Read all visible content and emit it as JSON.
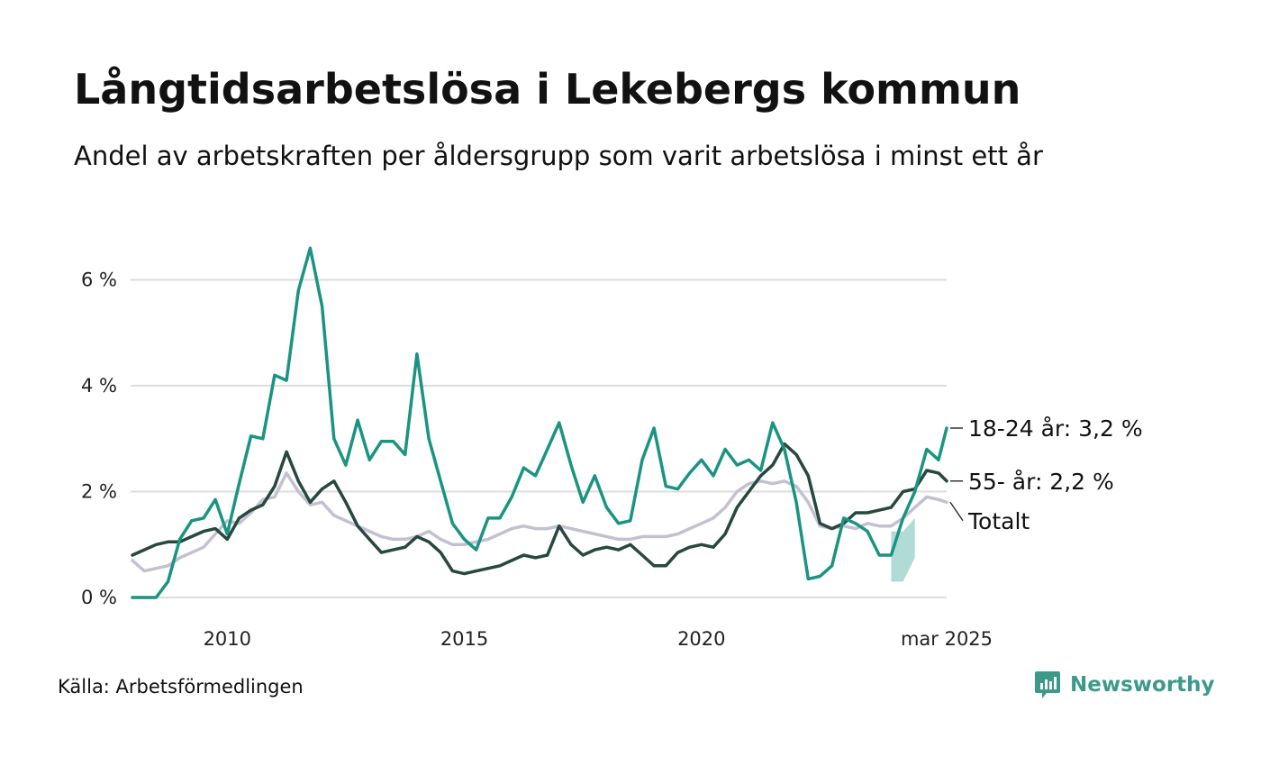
{
  "title": "Långtidsarbetslösa i Lekebergs kommun",
  "subtitle": "Andel av arbetskraften per åldersgrupp som varit arbetslösa i minst ett år",
  "source": "Källa: Arbetsförmedlingen",
  "brand": {
    "name": "Newsworthy",
    "icon": "newsworthy-logo-icon",
    "color": "#3d9a8b"
  },
  "chart_data": {
    "type": "line",
    "xlim": [
      2008.0,
      2025.17
    ],
    "ylim": [
      0,
      7.2
    ],
    "y_ticks": [
      {
        "value": 0,
        "label": "0 %"
      },
      {
        "value": 2,
        "label": "2 %"
      },
      {
        "value": 4,
        "label": "4 %"
      },
      {
        "value": 6,
        "label": "6 %"
      }
    ],
    "x_ticks": [
      {
        "value": 2010,
        "label": "2010"
      },
      {
        "value": 2015,
        "label": "2015"
      },
      {
        "value": 2020,
        "label": "2020"
      },
      {
        "value": 2025.17,
        "label": "mar 2025"
      }
    ],
    "grid": true,
    "legend": "end-labels",
    "series": [
      {
        "name": "Totalt",
        "end_label": "Totalt",
        "color": "#c3c1cf",
        "values": [
          [
            2008.0,
            0.7
          ],
          [
            2008.25,
            0.5
          ],
          [
            2008.5,
            0.55
          ],
          [
            2008.75,
            0.6
          ],
          [
            2009.0,
            0.75
          ],
          [
            2009.25,
            0.85
          ],
          [
            2009.5,
            0.95
          ],
          [
            2009.75,
            1.2
          ],
          [
            2010.0,
            1.45
          ],
          [
            2010.25,
            1.4
          ],
          [
            2010.5,
            1.6
          ],
          [
            2010.75,
            1.85
          ],
          [
            2011.0,
            1.9
          ],
          [
            2011.25,
            2.35
          ],
          [
            2011.5,
            2.0
          ],
          [
            2011.75,
            1.75
          ],
          [
            2012.0,
            1.8
          ],
          [
            2012.25,
            1.55
          ],
          [
            2012.5,
            1.45
          ],
          [
            2012.75,
            1.35
          ],
          [
            2013.0,
            1.25
          ],
          [
            2013.25,
            1.15
          ],
          [
            2013.5,
            1.1
          ],
          [
            2013.75,
            1.1
          ],
          [
            2014.0,
            1.15
          ],
          [
            2014.25,
            1.25
          ],
          [
            2014.5,
            1.1
          ],
          [
            2014.75,
            1.0
          ],
          [
            2015.0,
            1.0
          ],
          [
            2015.25,
            1.05
          ],
          [
            2015.5,
            1.1
          ],
          [
            2015.75,
            1.2
          ],
          [
            2016.0,
            1.3
          ],
          [
            2016.25,
            1.35
          ],
          [
            2016.5,
            1.3
          ],
          [
            2016.75,
            1.3
          ],
          [
            2017.0,
            1.35
          ],
          [
            2017.25,
            1.3
          ],
          [
            2017.5,
            1.25
          ],
          [
            2017.75,
            1.2
          ],
          [
            2018.0,
            1.15
          ],
          [
            2018.25,
            1.1
          ],
          [
            2018.5,
            1.1
          ],
          [
            2018.75,
            1.15
          ],
          [
            2019.0,
            1.15
          ],
          [
            2019.25,
            1.15
          ],
          [
            2019.5,
            1.2
          ],
          [
            2019.75,
            1.3
          ],
          [
            2020.0,
            1.4
          ],
          [
            2020.25,
            1.5
          ],
          [
            2020.5,
            1.7
          ],
          [
            2020.75,
            2.0
          ],
          [
            2021.0,
            2.15
          ],
          [
            2021.25,
            2.2
          ],
          [
            2021.5,
            2.15
          ],
          [
            2021.75,
            2.2
          ],
          [
            2022.0,
            2.1
          ],
          [
            2022.25,
            1.8
          ],
          [
            2022.5,
            1.35
          ],
          [
            2022.75,
            1.3
          ],
          [
            2023.0,
            1.35
          ],
          [
            2023.25,
            1.3
          ],
          [
            2023.5,
            1.4
          ],
          [
            2023.75,
            1.35
          ],
          [
            2024.0,
            1.35
          ],
          [
            2024.25,
            1.5
          ],
          [
            2024.5,
            1.7
          ],
          [
            2024.75,
            1.9
          ],
          [
            2025.0,
            1.85
          ],
          [
            2025.17,
            1.8
          ]
        ]
      },
      {
        "name": "55- år",
        "end_label": "55- år: 2,2 %",
        "color": "#26483f",
        "values": [
          [
            2008.0,
            0.8
          ],
          [
            2008.25,
            0.9
          ],
          [
            2008.5,
            1.0
          ],
          [
            2008.75,
            1.05
          ],
          [
            2009.0,
            1.05
          ],
          [
            2009.25,
            1.15
          ],
          [
            2009.5,
            1.25
          ],
          [
            2009.75,
            1.3
          ],
          [
            2010.0,
            1.1
          ],
          [
            2010.25,
            1.5
          ],
          [
            2010.5,
            1.65
          ],
          [
            2010.75,
            1.75
          ],
          [
            2011.0,
            2.1
          ],
          [
            2011.25,
            2.75
          ],
          [
            2011.5,
            2.2
          ],
          [
            2011.75,
            1.8
          ],
          [
            2012.0,
            2.05
          ],
          [
            2012.25,
            2.2
          ],
          [
            2012.5,
            1.8
          ],
          [
            2012.75,
            1.35
          ],
          [
            2013.0,
            1.1
          ],
          [
            2013.25,
            0.85
          ],
          [
            2013.5,
            0.9
          ],
          [
            2013.75,
            0.95
          ],
          [
            2014.0,
            1.15
          ],
          [
            2014.25,
            1.05
          ],
          [
            2014.5,
            0.85
          ],
          [
            2014.75,
            0.5
          ],
          [
            2015.0,
            0.45
          ],
          [
            2015.25,
            0.5
          ],
          [
            2015.5,
            0.55
          ],
          [
            2015.75,
            0.6
          ],
          [
            2016.0,
            0.7
          ],
          [
            2016.25,
            0.8
          ],
          [
            2016.5,
            0.75
          ],
          [
            2016.75,
            0.8
          ],
          [
            2017.0,
            1.35
          ],
          [
            2017.25,
            1.0
          ],
          [
            2017.5,
            0.8
          ],
          [
            2017.75,
            0.9
          ],
          [
            2018.0,
            0.95
          ],
          [
            2018.25,
            0.9
          ],
          [
            2018.5,
            1.0
          ],
          [
            2018.75,
            0.8
          ],
          [
            2019.0,
            0.6
          ],
          [
            2019.25,
            0.6
          ],
          [
            2019.5,
            0.85
          ],
          [
            2019.75,
            0.95
          ],
          [
            2020.0,
            1.0
          ],
          [
            2020.25,
            0.95
          ],
          [
            2020.5,
            1.2
          ],
          [
            2020.75,
            1.7
          ],
          [
            2021.0,
            2.0
          ],
          [
            2021.25,
            2.3
          ],
          [
            2021.5,
            2.5
          ],
          [
            2021.75,
            2.9
          ],
          [
            2022.0,
            2.7
          ],
          [
            2022.25,
            2.3
          ],
          [
            2022.5,
            1.4
          ],
          [
            2022.75,
            1.3
          ],
          [
            2023.0,
            1.4
          ],
          [
            2023.25,
            1.6
          ],
          [
            2023.5,
            1.6
          ],
          [
            2023.75,
            1.65
          ],
          [
            2024.0,
            1.7
          ],
          [
            2024.25,
            2.0
          ],
          [
            2024.5,
            2.05
          ],
          [
            2024.75,
            2.4
          ],
          [
            2025.0,
            2.35
          ],
          [
            2025.17,
            2.2
          ]
        ]
      },
      {
        "name": "18-24 år",
        "end_label": "18-24 år: 3,2 %",
        "color": "#1a9482",
        "values": [
          [
            2008.0,
            0.0
          ],
          [
            2008.25,
            0.0
          ],
          [
            2008.5,
            0.0
          ],
          [
            2008.75,
            0.3
          ],
          [
            2009.0,
            1.1
          ],
          [
            2009.25,
            1.45
          ],
          [
            2009.5,
            1.5
          ],
          [
            2009.75,
            1.85
          ],
          [
            2010.0,
            1.2
          ],
          [
            2010.25,
            2.15
          ],
          [
            2010.5,
            3.05
          ],
          [
            2010.75,
            3.0
          ],
          [
            2011.0,
            4.2
          ],
          [
            2011.25,
            4.1
          ],
          [
            2011.5,
            5.8
          ],
          [
            2011.75,
            6.6
          ],
          [
            2012.0,
            5.5
          ],
          [
            2012.25,
            3.0
          ],
          [
            2012.5,
            2.5
          ],
          [
            2012.75,
            3.35
          ],
          [
            2013.0,
            2.6
          ],
          [
            2013.25,
            2.95
          ],
          [
            2013.5,
            2.95
          ],
          [
            2013.75,
            2.7
          ],
          [
            2014.0,
            4.6
          ],
          [
            2014.25,
            3.0
          ],
          [
            2014.5,
            2.2
          ],
          [
            2014.75,
            1.4
          ],
          [
            2015.0,
            1.1
          ],
          [
            2015.25,
            0.9
          ],
          [
            2015.5,
            1.5
          ],
          [
            2015.75,
            1.5
          ],
          [
            2016.0,
            1.9
          ],
          [
            2016.25,
            2.45
          ],
          [
            2016.5,
            2.3
          ],
          [
            2016.75,
            2.8
          ],
          [
            2017.0,
            3.3
          ],
          [
            2017.25,
            2.5
          ],
          [
            2017.5,
            1.8
          ],
          [
            2017.75,
            2.3
          ],
          [
            2018.0,
            1.7
          ],
          [
            2018.25,
            1.4
          ],
          [
            2018.5,
            1.45
          ],
          [
            2018.75,
            2.6
          ],
          [
            2019.0,
            3.2
          ],
          [
            2019.25,
            2.1
          ],
          [
            2019.5,
            2.05
          ],
          [
            2019.75,
            2.35
          ],
          [
            2020.0,
            2.6
          ],
          [
            2020.25,
            2.3
          ],
          [
            2020.5,
            2.8
          ],
          [
            2020.75,
            2.5
          ],
          [
            2021.0,
            2.6
          ],
          [
            2021.25,
            2.4
          ],
          [
            2021.5,
            3.3
          ],
          [
            2021.75,
            2.8
          ],
          [
            2022.0,
            1.8
          ],
          [
            2022.25,
            0.35
          ],
          [
            2022.5,
            0.4
          ],
          [
            2022.75,
            0.6
          ],
          [
            2023.0,
            1.5
          ],
          [
            2023.25,
            1.4
          ],
          [
            2023.5,
            1.25
          ],
          [
            2023.75,
            0.8
          ],
          [
            2024.0,
            0.8
          ],
          [
            2024.25,
            1.5
          ],
          [
            2024.5,
            2.0
          ],
          [
            2024.75,
            2.8
          ],
          [
            2025.0,
            2.6
          ],
          [
            2025.17,
            3.2
          ]
        ]
      }
    ],
    "uncertainty_band": {
      "series": "18-24 år",
      "color": "#a8d8d0",
      "values": [
        [
          2024.0,
          0.3,
          1.25
        ],
        [
          2024.25,
          0.3,
          1.25
        ],
        [
          2024.5,
          0.75,
          1.5
        ]
      ]
    }
  }
}
